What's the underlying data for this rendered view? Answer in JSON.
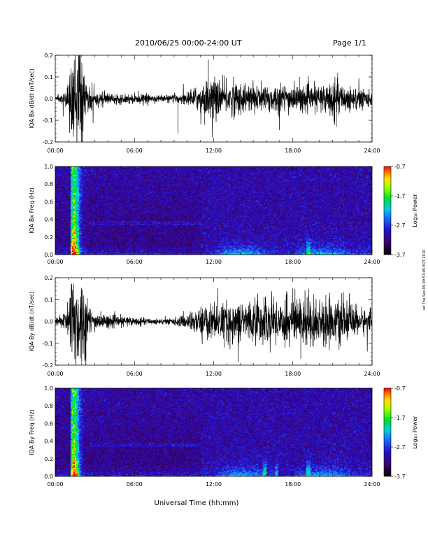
{
  "header": {
    "date_range": "2010/06/25  00:00-24:00 UT",
    "page": "Page 1/1"
  },
  "side_note": "ed Thu Sep 09 09:53:05 EDT 2010",
  "chart_data": [
    {
      "type": "line",
      "title": "",
      "ylabel": "IQA Bx dB/dt (nT/sec)",
      "xlim": [
        "00:00",
        "24:00"
      ],
      "ylim": [
        -0.2,
        0.2
      ],
      "x_ticks": [
        "00:00",
        "06:00",
        "12:00",
        "18:00",
        "24:00"
      ],
      "y_ticks": [
        "-0.2",
        "-0.1",
        "0.0",
        "0.1",
        "0.2"
      ],
      "series_color": "#000000",
      "envelope": {
        "x_hours": [
          0,
          0.5,
          1.0,
          1.2,
          1.5,
          2.0,
          2.4,
          2.8,
          3.5,
          4.5,
          5.5,
          6.5,
          7.5,
          8.5,
          9.5,
          10.5,
          11.0,
          11.7,
          12.5,
          13.5,
          14.5,
          15.5,
          16.5,
          17.5,
          18.5,
          19.5,
          20.5,
          21.0,
          21.5,
          22.5,
          23.5,
          24.0
        ],
        "amplitude": [
          0.015,
          0.02,
          0.06,
          0.2,
          0.2,
          0.2,
          0.08,
          0.035,
          0.028,
          0.02,
          0.02,
          0.02,
          0.015,
          0.015,
          0.02,
          0.04,
          0.06,
          0.08,
          0.07,
          0.07,
          0.06,
          0.06,
          0.06,
          0.06,
          0.05,
          0.05,
          0.06,
          0.08,
          0.06,
          0.05,
          0.04,
          0.03
        ]
      },
      "spikes": [
        {
          "x": 11.6,
          "y": 0.18
        },
        {
          "x": 9.3,
          "y": -0.16
        },
        {
          "x": 11.3,
          "y": -0.12
        },
        {
          "x": 21.4,
          "y": 0.12
        },
        {
          "x": 21.3,
          "y": -0.13
        },
        {
          "x": 13.5,
          "y": 0.1
        },
        {
          "x": 18.5,
          "y": 0.1
        }
      ]
    },
    {
      "type": "heatmap",
      "title": "",
      "ylabel": "IQA Bx Freq (Hz)",
      "xlim": [
        "00:00",
        "24:00"
      ],
      "ylim": [
        0.0,
        1.0
      ],
      "x_ticks": [
        "00:00",
        "06:00",
        "12:00",
        "18:00",
        "24:00"
      ],
      "y_ticks": [
        "0.0",
        "0.2",
        "0.4",
        "0.6",
        "0.8",
        "1.0"
      ],
      "colorbar": {
        "label": "Log₁₀ Power",
        "ticks": [
          "-0.7",
          "-1.7",
          "-2.7",
          "-3.7"
        ],
        "range": [
          -3.7,
          -0.7
        ]
      },
      "features": {
        "event_start_hour": 1.1,
        "event_peak_hour": 1.4,
        "event_end_hour": 2.5,
        "band_hz": 0.35,
        "band_end_hour": 11.0,
        "lowfreq_activity_hours": [
          11.0,
          22.5
        ],
        "spike_lines_hours": [
          19.2
        ]
      }
    },
    {
      "type": "line",
      "title": "",
      "ylabel": "IQA By dB/dt (nT/sec)",
      "xlim": [
        "00:00",
        "24:00"
      ],
      "ylim": [
        -0.2,
        0.2
      ],
      "x_ticks": [
        "00:00",
        "06:00",
        "12:00",
        "18:00",
        "24:00"
      ],
      "y_ticks": [
        "-0.2",
        "-0.1",
        "0.0",
        "0.1",
        "0.2"
      ],
      "series_color": "#000000",
      "envelope": {
        "x_hours": [
          0,
          0.5,
          1.0,
          1.2,
          1.5,
          2.0,
          2.4,
          2.8,
          3.5,
          4.5,
          5.5,
          6.5,
          7.5,
          8.5,
          9.5,
          10.5,
          11.0,
          11.7,
          12.5,
          13.5,
          14.5,
          15.5,
          16.5,
          17.5,
          18.5,
          19.5,
          20.5,
          21.5,
          22.5,
          23.5,
          24.0
        ],
        "amplitude": [
          0.015,
          0.025,
          0.07,
          0.2,
          0.2,
          0.2,
          0.09,
          0.04,
          0.03,
          0.022,
          0.02,
          0.015,
          0.012,
          0.012,
          0.02,
          0.045,
          0.06,
          0.07,
          0.07,
          0.08,
          0.08,
          0.09,
          0.09,
          0.1,
          0.1,
          0.1,
          0.09,
          0.08,
          0.07,
          0.05,
          0.04
        ]
      },
      "spikes": [
        {
          "x": 19.2,
          "y": 0.15
        },
        {
          "x": 18.6,
          "y": -0.17
        },
        {
          "x": 12.8,
          "y": -0.12
        },
        {
          "x": 21.5,
          "y": -0.13
        },
        {
          "x": 20.5,
          "y": 0.12
        },
        {
          "x": 15.8,
          "y": 0.11
        }
      ]
    },
    {
      "type": "heatmap",
      "title": "",
      "ylabel": "IQA By Freq (Hz)",
      "xlim": [
        "00:00",
        "24:00"
      ],
      "ylim": [
        0.0,
        1.0
      ],
      "x_ticks": [
        "00:00",
        "06:00",
        "12:00",
        "18:00",
        "24:00"
      ],
      "y_ticks": [
        "0.0",
        "0.2",
        "0.4",
        "0.6",
        "0.8",
        "1.0"
      ],
      "xlabel": "Universal Time (hh:mm)",
      "colorbar": {
        "label": "Log₁₀ Power",
        "ticks": [
          "-0.7",
          "-1.7",
          "-2.7",
          "-3.7"
        ],
        "range": [
          -3.7,
          -0.7
        ]
      },
      "features": {
        "event_start_hour": 1.1,
        "event_peak_hour": 1.4,
        "event_end_hour": 2.5,
        "band_hz": 0.35,
        "band_end_hour": 11.0,
        "lowfreq_activity_hours": [
          11.0,
          22.5
        ],
        "spike_lines_hours": [
          15.9,
          16.8,
          19.2
        ]
      }
    }
  ]
}
